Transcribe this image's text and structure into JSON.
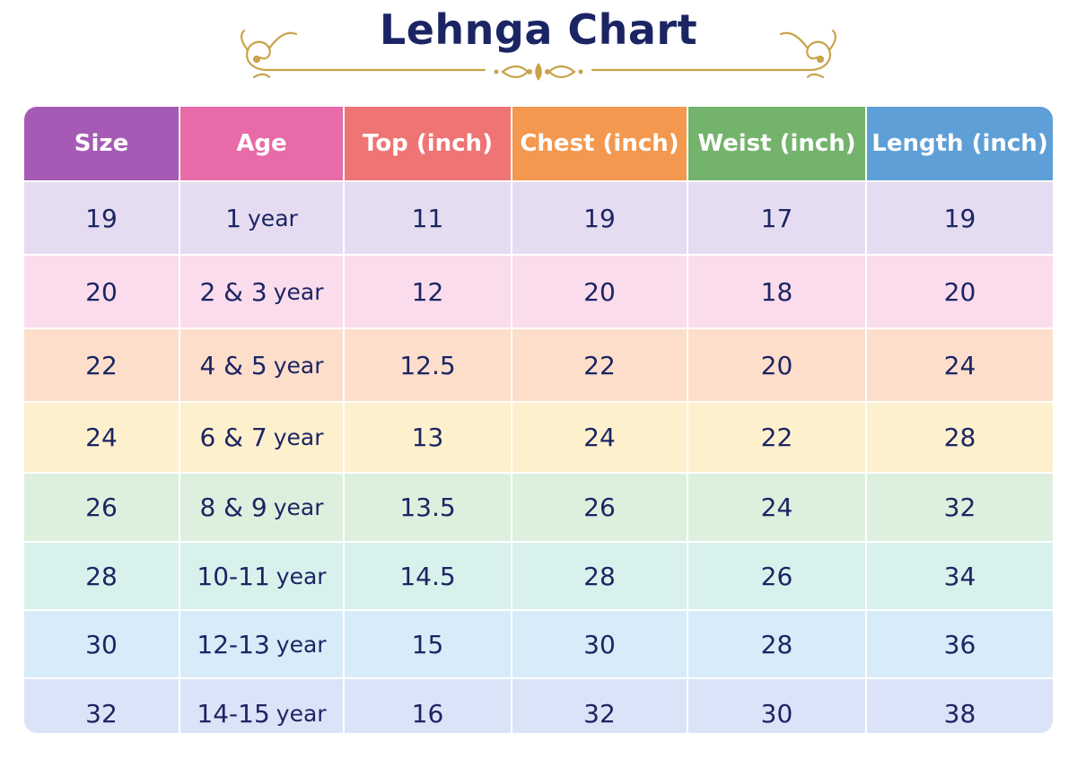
{
  "title": "Lehnga Chart",
  "colors": {
    "title": "#1c2563",
    "ornament": "#c9a24a",
    "header": [
      "#a55bb5",
      "#e86aa8",
      "#ef7474",
      "#f3984e",
      "#74b36c",
      "#5f9fd7"
    ],
    "rows": [
      "#e6dcf1",
      "#fbdced",
      "#fddecb",
      "#fdf0cd",
      "#ddf0de",
      "#d8f1ec",
      "#d8ebf8",
      "#dbe3f8"
    ]
  },
  "table": {
    "headers": [
      "Size",
      "Age",
      "Top (inch)",
      "Chest (inch)",
      "Weist (inch)",
      "Length (inch)"
    ],
    "rows": [
      {
        "size": "19",
        "age": "1",
        "top": "11",
        "chest": "19",
        "waist": "17",
        "length": "19"
      },
      {
        "size": "20",
        "age": "2 & 3",
        "top": "12",
        "chest": "20",
        "waist": "18",
        "length": "20"
      },
      {
        "size": "22",
        "age": "4 & 5",
        "top": "12.5",
        "chest": "22",
        "waist": "20",
        "length": "24"
      },
      {
        "size": "24",
        "age": "6 & 7",
        "top": "13",
        "chest": "24",
        "waist": "22",
        "length": "28"
      },
      {
        "size": "26",
        "age": "8 & 9",
        "top": "13.5",
        "chest": "26",
        "waist": "24",
        "length": "32"
      },
      {
        "size": "28",
        "age": "10-11",
        "top": "14.5",
        "chest": "28",
        "waist": "26",
        "length": "34"
      },
      {
        "size": "30",
        "age": "12-13",
        "top": "15",
        "chest": "30",
        "waist": "28",
        "length": "36"
      },
      {
        "size": "32",
        "age": "14-15",
        "top": "16",
        "chest": "32",
        "waist": "30",
        "length": "38"
      }
    ],
    "age_unit": "year"
  }
}
